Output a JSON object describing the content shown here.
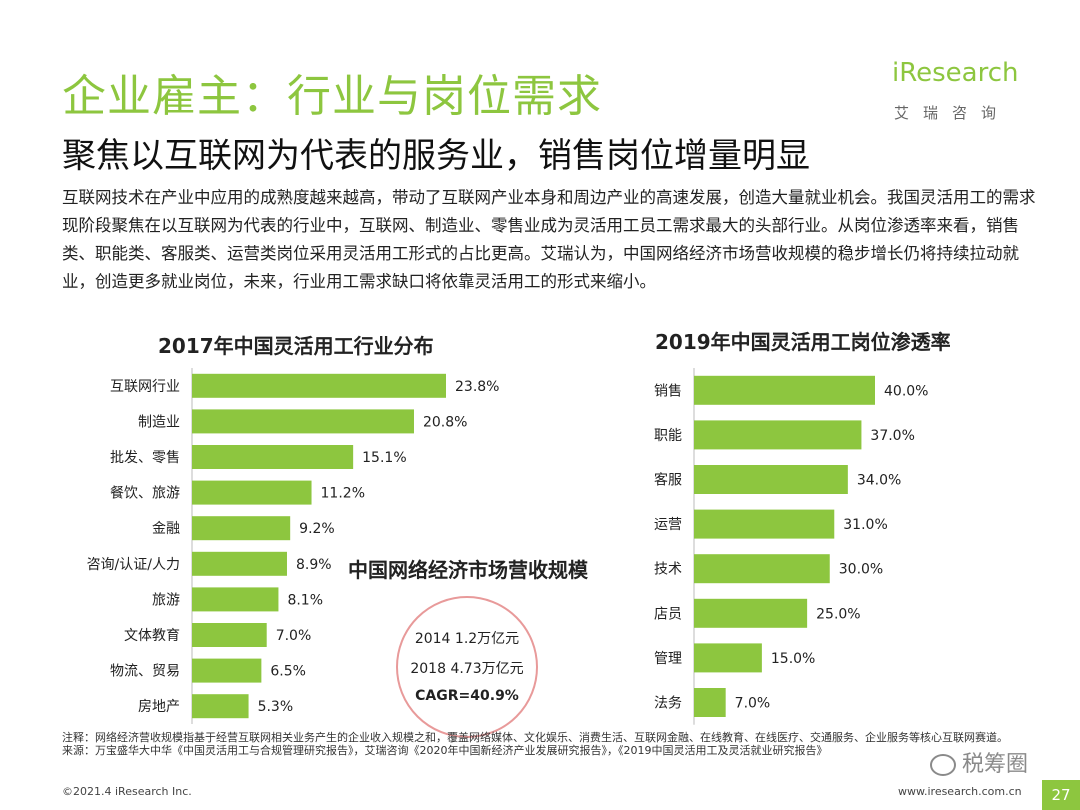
{
  "header": {
    "title": "企业雇主：行业与岗位需求",
    "subtitle": "聚焦以互联网为代表的服务业，销售岗位增量明显"
  },
  "logo": {
    "brand": "iResearch",
    "sub": "艾瑞咨询"
  },
  "intro": "互联网技术在产业中应用的成熟度越来越高，带动了互联网产业本身和周边产业的高速发展，创造大量就业机会。我国灵活用工的需求现阶段聚焦在以互联网为代表的行业中，互联网、制造业、零售业成为灵活用工员工需求最大的头部行业。从岗位渗透率来看，销售类、职能类、客服类、运营类岗位采用灵活用工形式的占比更高。艾瑞认为，中国网络经济市场营收规模的稳步增长仍将持续拉动就业，创造更多就业岗位，未来，行业用工需求缺口将依靠灵活用工的形式来缩小。",
  "chart_data": [
    {
      "type": "bar",
      "orientation": "horizontal",
      "title": "2017年中国灵活用工行业分布",
      "categories": [
        "互联网行业",
        "制造业",
        "批发、零售",
        "餐饮、旅游",
        "金融",
        "咨询/认证/人力",
        "旅游",
        "文体教育",
        "物流、贸易",
        "房地产"
      ],
      "values": [
        23.8,
        20.8,
        15.1,
        11.2,
        9.2,
        8.9,
        8.1,
        7.0,
        6.5,
        5.3
      ],
      "value_labels": [
        "23.8%",
        "20.8%",
        "15.1%",
        "11.2%",
        "9.2%",
        "8.9%",
        "8.1%",
        "7.0%",
        "6.5%",
        "5.3%"
      ],
      "unit": "%",
      "grid": false,
      "color": "#8dc63f"
    },
    {
      "type": "bar",
      "orientation": "horizontal",
      "title": "2019年中国灵活用工岗位渗透率",
      "categories": [
        "销售",
        "职能",
        "客服",
        "运营",
        "技术",
        "店员",
        "管理",
        "法务"
      ],
      "values": [
        40.0,
        37.0,
        34.0,
        31.0,
        30.0,
        25.0,
        15.0,
        7.0
      ],
      "value_labels": [
        "40.0%",
        "37.0%",
        "34.0%",
        "31.0%",
        "30.0%",
        "25.0%",
        "15.0%",
        "7.0%"
      ],
      "unit": "%",
      "grid": false,
      "color": "#8dc63f"
    }
  ],
  "market": {
    "title": "中国网络经济市场营收规模",
    "line1": "2014  1.2万亿元",
    "line2": "2018  4.73万亿元",
    "cagr": "CAGR=40.9%"
  },
  "footnote": {
    "note": "注释：网络经济营收规模指基于经营互联网相关业务产生的企业收入规模之和，覆盖网络媒体、文化娱乐、消费生活、互联网金融、在线教育、在线医疗、交通服务、企业服务等核心互联网赛道。",
    "source": "来源：万宝盛华大中华《中国灵活用工与合规管理研究报告》，艾瑞咨询《2020年中国新经济产业发展研究报告》，《2019中国灵活用工及灵活就业研究报告》"
  },
  "footer": {
    "copyright": "©2021.4 iResearch Inc.",
    "url": "www.iresearch.com.cn",
    "page": "27",
    "watermark": "税筹圈"
  }
}
